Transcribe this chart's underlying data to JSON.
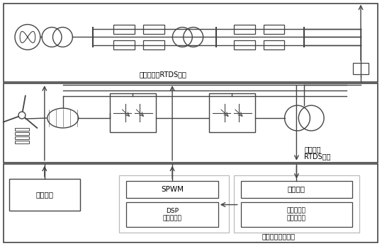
{
  "fig_width": 5.39,
  "fig_height": 3.48,
  "dpi": 100,
  "bg_color": "#ffffff",
  "bc": "#444444",
  "gray": "#888888",
  "lgray": "#bbbbbb",
  "panel1_label": "输电网一次RTDS实现",
  "panel2_label1": "风机一次",
  "panel2_label2": "RTDS实现",
  "panel3_label": "控制器快速原型化",
  "label_bianjikongzhi": "变桨控制",
  "label_spwm": "SPWM",
  "label_xinhao": "信号采集",
  "label_dsp": "DSP\n（小步长）",
  "label_gongyekongji": "通用工控机\n（大步长）"
}
